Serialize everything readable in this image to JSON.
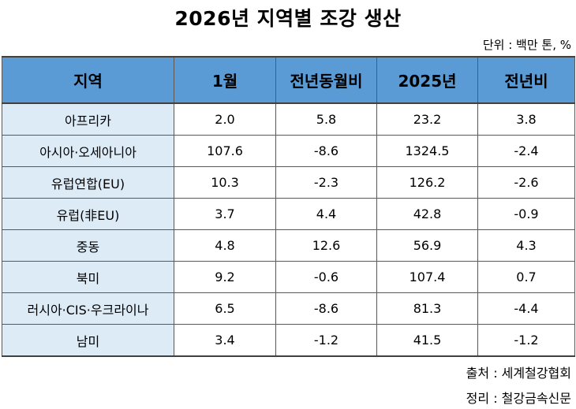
{
  "title": "2026년 지역별 조강 생산",
  "unit": "단위 : 백만 톤, %",
  "table": {
    "headers": [
      "지역",
      "1월",
      "전년동월비",
      "2025년",
      "전년비"
    ],
    "rows": [
      [
        "아프리카",
        "2.0",
        "5.8",
        "23.2",
        "3.8"
      ],
      [
        "아시아·오세아니아",
        "107.6",
        "-8.6",
        "1324.5",
        "-2.4"
      ],
      [
        "유럽연합(EU)",
        "10.3",
        "-2.3",
        "126.2",
        "-2.6"
      ],
      [
        "유럽(非EU)",
        "3.7",
        "4.4",
        "42.8",
        "-0.9"
      ],
      [
        "중동",
        "4.8",
        "12.6",
        "56.9",
        "4.3"
      ],
      [
        "북미",
        "9.2",
        "-0.6",
        "107.4",
        "0.7"
      ],
      [
        "러시아·CIS·우크라이나",
        "6.5",
        "-8.6",
        "81.3",
        "-4.4"
      ],
      [
        "남미",
        "3.4",
        "-1.2",
        "41.5",
        "-1.2"
      ]
    ]
  },
  "source": "출처 : 세계철강협회",
  "compiled": "정리 : 철강금속신문"
}
